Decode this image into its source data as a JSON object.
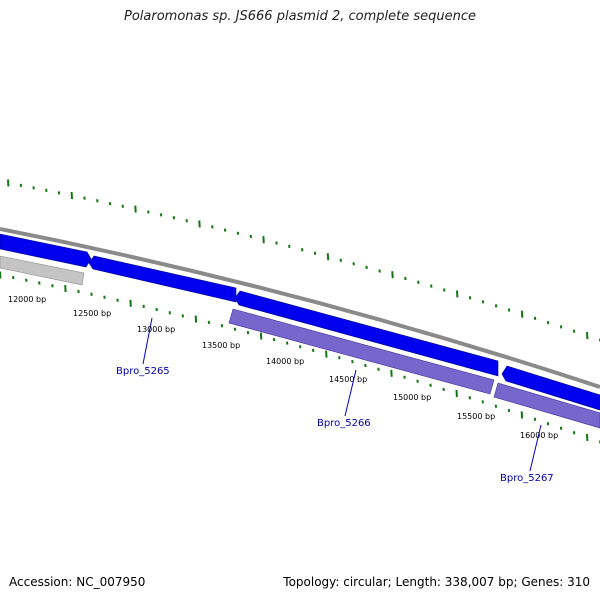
{
  "title": "Polaromonas sp. JS666 plasmid 2, complete sequence",
  "footer": {
    "accession": "Accession: NC_007950",
    "summary": "Topology: circular; Length: 338,007 bp; Genes: 310"
  },
  "colors": {
    "backbone": "#808080",
    "gene_forward": "#0000ee",
    "gene_reverse": "#7766cc",
    "gene_other": "#c0c0c0",
    "ticks": "#117711",
    "gene_label": "#0000aa",
    "callout_line": "#0000cc"
  },
  "tick_labels": [
    {
      "text": "12000 bp"
    },
    {
      "text": "12500 bp"
    },
    {
      "text": "13000 bp"
    },
    {
      "text": "13500 bp"
    },
    {
      "text": "14000 bp"
    },
    {
      "text": "14500 bp"
    },
    {
      "text": "15000 bp"
    },
    {
      "text": "15500 bp"
    },
    {
      "text": "16000 bp"
    }
  ],
  "gene_labels": [
    {
      "text": "Bpro_5265"
    },
    {
      "text": "Bpro_5266"
    },
    {
      "text": "Bpro_5267"
    }
  ]
}
